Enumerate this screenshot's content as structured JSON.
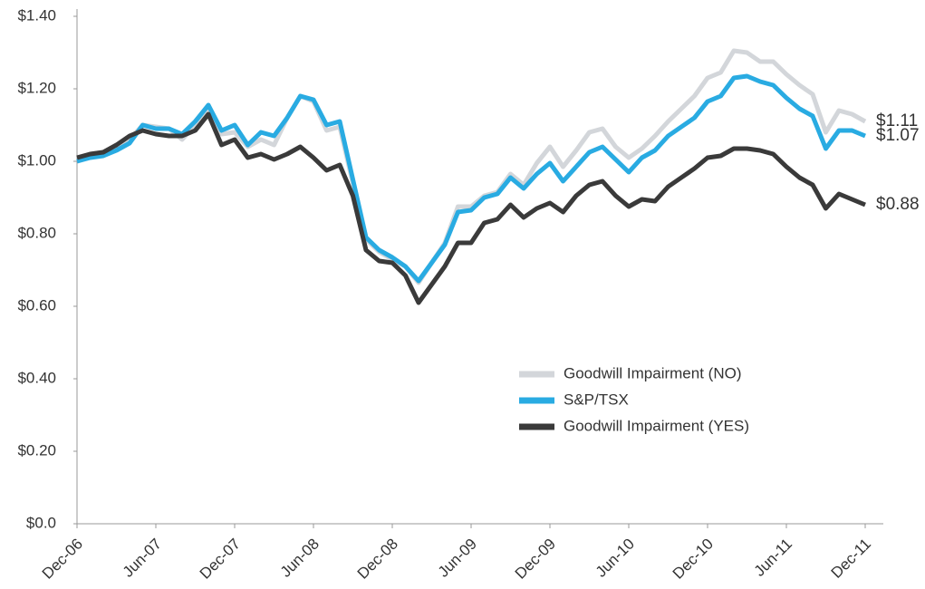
{
  "chart_data": {
    "type": "line",
    "categories": [
      "Dec-06",
      null,
      null,
      null,
      null,
      null,
      "Jun-07",
      null,
      null,
      null,
      null,
      null,
      "Dec-07",
      null,
      null,
      null,
      null,
      null,
      "Jun-08",
      null,
      null,
      null,
      null,
      null,
      "Dec-08",
      null,
      null,
      null,
      null,
      null,
      "Jun-09",
      null,
      null,
      null,
      null,
      null,
      "Dec-09",
      null,
      null,
      null,
      null,
      null,
      "Jun-10",
      null,
      null,
      null,
      null,
      null,
      "Dec-10",
      null,
      null,
      null,
      null,
      null,
      "Jun-11",
      null,
      null,
      null,
      null,
      null,
      "Dec-11"
    ],
    "series": [
      {
        "name": "Goodwill Impairment (NO)",
        "color": "#d3d6da",
        "end_label": "$1.11",
        "values": [
          1.0,
          1.02,
          1.025,
          1.04,
          1.06,
          1.1,
          1.095,
          1.09,
          1.06,
          1.1,
          1.15,
          1.075,
          1.08,
          1.04,
          1.06,
          1.045,
          1.12,
          1.18,
          1.165,
          1.085,
          1.095,
          0.94,
          0.785,
          0.75,
          0.73,
          0.71,
          0.665,
          0.72,
          0.775,
          0.875,
          0.875,
          0.905,
          0.915,
          0.965,
          0.935,
          0.995,
          1.04,
          0.985,
          1.03,
          1.08,
          1.09,
          1.04,
          1.01,
          1.035,
          1.07,
          1.11,
          1.145,
          1.18,
          1.23,
          1.245,
          1.305,
          1.3,
          1.275,
          1.275,
          1.24,
          1.21,
          1.185,
          1.08,
          1.14,
          1.13,
          1.11
        ]
      },
      {
        "name": "S&P/TSX",
        "color": "#29abe2",
        "end_label": "$1.07",
        "values": [
          1.0,
          1.01,
          1.015,
          1.03,
          1.05,
          1.1,
          1.09,
          1.09,
          1.075,
          1.11,
          1.155,
          1.085,
          1.1,
          1.045,
          1.08,
          1.07,
          1.12,
          1.18,
          1.17,
          1.1,
          1.11,
          0.95,
          0.79,
          0.755,
          0.735,
          0.71,
          0.67,
          0.72,
          0.77,
          0.86,
          0.865,
          0.9,
          0.91,
          0.955,
          0.925,
          0.965,
          0.995,
          0.945,
          0.985,
          1.025,
          1.04,
          1.005,
          0.97,
          1.01,
          1.03,
          1.07,
          1.095,
          1.12,
          1.165,
          1.18,
          1.23,
          1.235,
          1.22,
          1.21,
          1.175,
          1.145,
          1.125,
          1.035,
          1.085,
          1.085,
          1.07
        ]
      },
      {
        "name": "Goodwill Impairment (YES)",
        "color": "#3a3a3a",
        "end_label": "$0.88",
        "values": [
          1.01,
          1.02,
          1.025,
          1.045,
          1.07,
          1.085,
          1.075,
          1.07,
          1.07,
          1.085,
          1.13,
          1.045,
          1.06,
          1.01,
          1.02,
          1.005,
          1.02,
          1.04,
          1.01,
          0.975,
          0.99,
          0.905,
          0.755,
          0.725,
          0.72,
          0.685,
          0.61,
          0.66,
          0.71,
          0.775,
          0.775,
          0.83,
          0.84,
          0.88,
          0.845,
          0.87,
          0.885,
          0.86,
          0.905,
          0.935,
          0.945,
          0.905,
          0.875,
          0.895,
          0.89,
          0.93,
          0.955,
          0.98,
          1.01,
          1.015,
          1.035,
          1.035,
          1.03,
          1.02,
          0.985,
          0.955,
          0.935,
          0.87,
          0.91,
          0.895,
          0.88
        ]
      }
    ],
    "ylim": [
      0,
      1.4
    ],
    "yticks": [
      {
        "value": 0,
        "label": "$0.0"
      },
      {
        "value": 0.2,
        "label": "$0.20"
      },
      {
        "value": 0.4,
        "label": "$0.40"
      },
      {
        "value": 0.6,
        "label": "$0.60"
      },
      {
        "value": 0.8,
        "label": "$0.80"
      },
      {
        "value": 1.0,
        "label": "$1.00"
      },
      {
        "value": 1.2,
        "label": "$1.20"
      },
      {
        "value": 1.4,
        "label": "$1.40"
      }
    ],
    "grid": false,
    "legend": "lower right"
  }
}
